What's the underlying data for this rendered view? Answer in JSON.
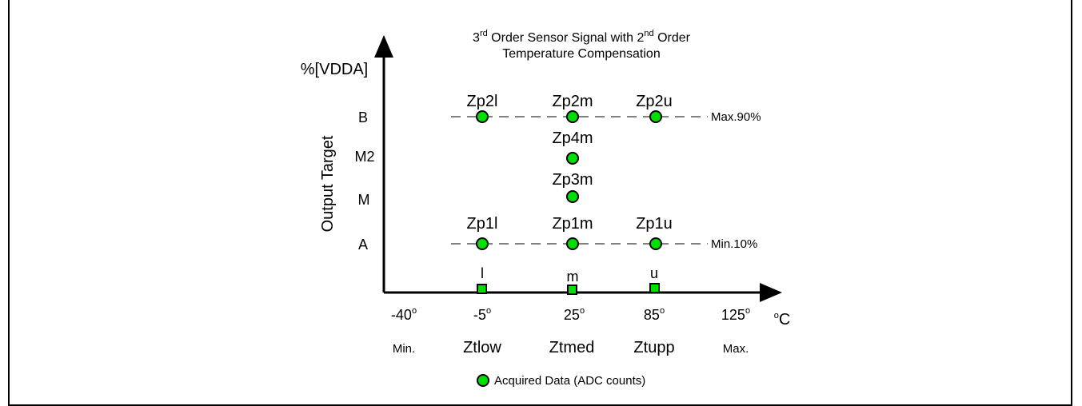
{
  "title": {
    "line1": [
      "3",
      "rd",
      " Order Sensor Signal with 2",
      "nd",
      " Order"
    ],
    "line2": "Temperature Compensation"
  },
  "y_axis": {
    "unit": "%[VDDA]",
    "label": "Output Target",
    "levels": [
      "B",
      "M2",
      "M",
      "A"
    ]
  },
  "x_axis": {
    "unit_degree": "o",
    "unit_letter": "C",
    "ticks": [
      {
        "value": "-40",
        "sup": "o",
        "name": "Min."
      },
      {
        "value": "-5",
        "sup": "o",
        "name": "Ztlow"
      },
      {
        "value": "25",
        "sup": "o",
        "name": "Ztmed"
      },
      {
        "value": "85",
        "sup": "o",
        "name": "Ztupp"
      },
      {
        "value": "125",
        "sup": "o",
        "name": "Max."
      }
    ]
  },
  "limits": {
    "max": "Max.90%",
    "min": "Min.10%"
  },
  "points": [
    {
      "label": "Zp2l",
      "temp": "-5",
      "level": "B"
    },
    {
      "label": "Zp2m",
      "temp": "25",
      "level": "B"
    },
    {
      "label": "Zp2u",
      "temp": "85",
      "level": "B"
    },
    {
      "label": "Zp4m",
      "temp": "25",
      "level": "M2"
    },
    {
      "label": "Zp3m",
      "temp": "25",
      "level": "M"
    },
    {
      "label": "Zp1l",
      "temp": "-5",
      "level": "A"
    },
    {
      "label": "Zp1m",
      "temp": "25",
      "level": "A"
    },
    {
      "label": "Zp1u",
      "temp": "85",
      "level": "A"
    }
  ],
  "temp_markers": [
    {
      "label": "l",
      "temp": "-5"
    },
    {
      "label": "m",
      "temp": "25"
    },
    {
      "label": "u",
      "temp": "85"
    }
  ],
  "legend": {
    "label": "Acquired Data (ADC counts)"
  },
  "colors": {
    "point_fill": "#00e000",
    "stroke": "#000000"
  }
}
